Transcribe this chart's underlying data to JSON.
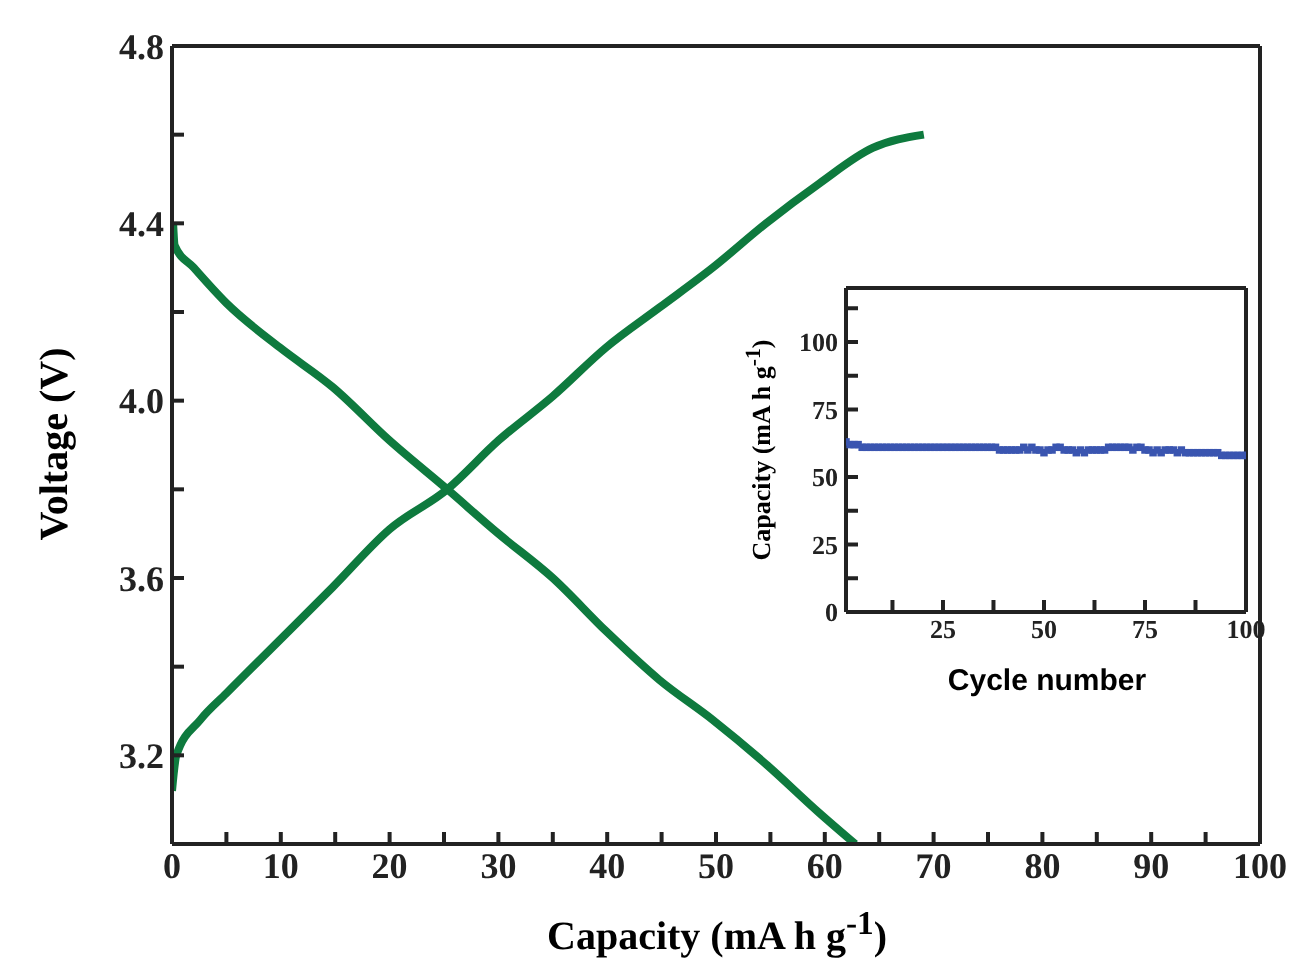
{
  "chart_data": [
    {
      "type": "line",
      "xlabel": "Capacity (mA h g$^{-1}$)",
      "ylabel": "Voltage (V)",
      "xlim": [
        0,
        100
      ],
      "ylim": [
        3.0,
        4.8
      ],
      "xticks": [
        0,
        {
          "value": 5,
          "label": null
        },
        10,
        {
          "value": 15,
          "label": null
        },
        20,
        {
          "value": 25,
          "label": null
        },
        30,
        {
          "value": 35,
          "label": null
        },
        40,
        {
          "value": 45,
          "label": null
        },
        50,
        {
          "value": 55,
          "label": null
        },
        60,
        {
          "value": 65,
          "label": null
        },
        70,
        {
          "value": 75,
          "label": null
        },
        80,
        {
          "value": 85,
          "label": null
        },
        90,
        {
          "value": 95,
          "label": null
        },
        100
      ],
      "yticks": [
        {
          "value": 3.0,
          "label": null
        },
        3.2,
        {
          "value": 3.4,
          "label": null
        },
        3.6,
        {
          "value": 3.8,
          "label": null
        },
        {
          "value": 4,
          "label": "4.0"
        },
        {
          "value": 4.2,
          "label": null
        },
        4.4,
        {
          "value": 4.6,
          "label": null
        },
        4.8
      ],
      "series": [
        {
          "color": "#0e7a3e",
          "x": [
            0,
            0.4,
            2.6,
            5,
            9.9,
            14.8,
            20,
            25.3,
            30,
            35,
            39.9,
            44.8,
            49.7,
            54.6,
            59.5,
            64.4,
            69.1
          ],
          "values": [
            3.12,
            3.2,
            3.28,
            3.34,
            3.46,
            3.58,
            3.71,
            3.8,
            3.91,
            4.01,
            4.12,
            4.21,
            4.3,
            4.4,
            4.49,
            4.57,
            4.6
          ]
        },
        {
          "color": "#0e7a3e",
          "x": [
            0.1,
            0.25,
            2,
            5,
            9.9,
            14.8,
            20,
            25.3,
            30,
            35,
            39.9,
            44.8,
            49.7,
            54.6,
            59.5,
            62.8
          ],
          "values": [
            4.4,
            4.35,
            4.3,
            4.22,
            4.12,
            4.03,
            3.91,
            3.8,
            3.7,
            3.6,
            3.48,
            3.37,
            3.28,
            3.18,
            3.07,
            3.0
          ]
        }
      ]
    },
    {
      "type": "scatter",
      "xlabel": "Cycle number",
      "ylabel": "Capacity (mA h g$^{-1}$)",
      "marker": "square",
      "xlim": [
        1,
        100
      ],
      "ylim": [
        0,
        120
      ],
      "xticks": [
        {
          "value": 12.5,
          "label": null
        },
        25,
        {
          "value": 37.5,
          "label": null
        },
        50,
        {
          "value": 62.5,
          "label": null
        },
        75,
        {
          "value": 87.5,
          "label": null
        },
        100
      ],
      "yticks": [
        0,
        {
          "value": 12.5,
          "label": null
        },
        25,
        {
          "value": 37.5,
          "label": null
        },
        50,
        {
          "value": 62.5,
          "label": null
        },
        75,
        {
          "value": 87.5,
          "label": null
        },
        100,
        {
          "value": 112.5,
          "label": null
        }
      ],
      "series": [
        {
          "color": "#3a55b0",
          "x": [
            1,
            2,
            3,
            4,
            5,
            6,
            7,
            8,
            9,
            10,
            11,
            12,
            13,
            14,
            15,
            16,
            17,
            18,
            19,
            20,
            21,
            22,
            23,
            24,
            25,
            26,
            27,
            28,
            29,
            30,
            31,
            32,
            33,
            34,
            35,
            36,
            37,
            38,
            39,
            40,
            41,
            42,
            43,
            44,
            45,
            46,
            47,
            48,
            49,
            50,
            51,
            52,
            53,
            54,
            55,
            56,
            57,
            58,
            59,
            60,
            61,
            62,
            63,
            64,
            65,
            66,
            67,
            68,
            69,
            70,
            71,
            72,
            73,
            74,
            75,
            76,
            77,
            78,
            79,
            80,
            81,
            82,
            83,
            84,
            85,
            86,
            87,
            88,
            89,
            90,
            91,
            92,
            93,
            94,
            95,
            96,
            97,
            98,
            99,
            100
          ],
          "values": [
            63,
            62,
            62,
            62,
            61,
            61,
            61,
            61,
            61,
            61,
            61,
            61,
            61,
            61,
            61,
            61,
            61,
            61,
            61,
            61,
            61,
            61,
            61,
            61,
            61,
            61,
            61,
            61,
            61,
            61,
            61,
            61,
            61,
            61,
            61,
            61,
            61,
            61,
            60,
            60,
            60,
            60,
            60,
            60,
            61,
            60,
            61,
            60,
            60,
            59,
            60,
            60,
            61,
            61,
            60,
            60,
            60,
            59,
            60,
            59,
            60,
            60,
            60,
            60,
            60,
            61,
            61,
            61,
            61,
            61,
            61,
            60,
            61,
            61,
            60,
            60,
            59,
            60,
            59,
            60,
            60,
            60,
            59,
            60,
            59,
            59,
            59,
            59,
            59,
            59,
            59,
            59,
            59,
            58,
            58,
            58,
            58,
            58,
            58,
            58
          ]
        }
      ]
    }
  ]
}
